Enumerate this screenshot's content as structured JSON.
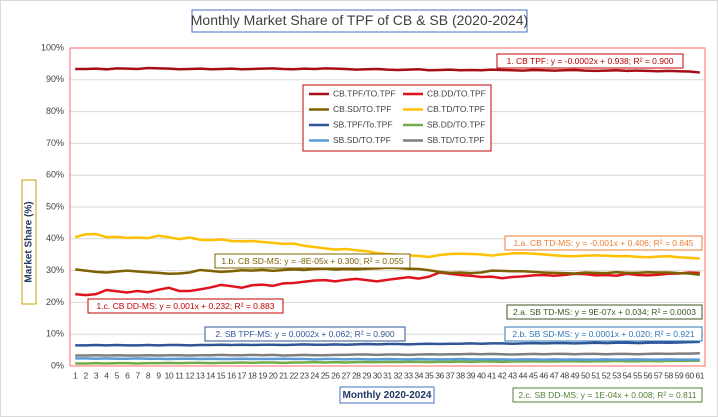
{
  "chart_data": {
    "type": "line",
    "title": "Monthly Market Share of TPF of CB & SB (2020-2024)",
    "x_label": "Monthly 2020-2024",
    "y_label": "Market Share (%)",
    "grid": true,
    "x": [
      1,
      2,
      3,
      4,
      5,
      6,
      7,
      8,
      9,
      10,
      11,
      12,
      13,
      14,
      15,
      16,
      17,
      18,
      19,
      20,
      21,
      22,
      23,
      24,
      25,
      26,
      27,
      28,
      29,
      30,
      31,
      32,
      33,
      34,
      35,
      36,
      37,
      38,
      39,
      40,
      41,
      42,
      43,
      44,
      45,
      46,
      47,
      48,
      49,
      50,
      51,
      52,
      53,
      54,
      55,
      56,
      57,
      58,
      59,
      60,
      61
    ],
    "xlim": [
      0.5,
      61.5
    ],
    "ylim": [
      0,
      100
    ],
    "yticks": [
      {
        "value": 0,
        "label": "0%"
      },
      {
        "value": 10,
        "label": "10%"
      },
      {
        "value": 20,
        "label": "20%"
      },
      {
        "value": 30,
        "label": "30%"
      },
      {
        "value": 40,
        "label": "40%"
      },
      {
        "value": 50,
        "label": "50%"
      },
      {
        "value": 60,
        "label": "60%"
      },
      {
        "value": 70,
        "label": "70%"
      },
      {
        "value": 80,
        "label": "80%"
      },
      {
        "value": 90,
        "label": "90%"
      },
      {
        "value": 100,
        "label": "100%"
      }
    ],
    "series": [
      {
        "name": "CB.TPF/TO.TPF",
        "color": "#a50f15",
        "values": [
          93.4,
          93.4,
          93.5,
          93.3,
          93.6,
          93.5,
          93.4,
          93.7,
          93.6,
          93.5,
          93.3,
          93.4,
          93.5,
          93.3,
          93.4,
          93.5,
          93.3,
          93.4,
          93.5,
          93.6,
          93.4,
          93.3,
          93.5,
          93.4,
          93.6,
          93.5,
          93.4,
          93.2,
          93.3,
          93.4,
          93.2,
          93.1,
          93.2,
          93.3,
          93.0,
          93.1,
          93.2,
          93.0,
          93.1,
          93.0,
          93.2,
          93.1,
          93.0,
          92.9,
          93.1,
          93.0,
          92.9,
          93.0,
          93.1,
          92.9,
          92.8,
          92.9,
          93.0,
          92.8,
          92.9,
          92.8,
          92.7,
          92.8,
          92.7,
          92.6,
          92.3
        ]
      },
      {
        "name": "CB.DD/TO.TPF",
        "color": "#e0141e",
        "values": [
          22.6,
          22.3,
          22.6,
          23.9,
          23.5,
          23.1,
          23.6,
          23.2,
          24.0,
          24.6,
          23.6,
          23.6,
          24.1,
          24.7,
          25.5,
          25.1,
          24.6,
          25.4,
          25.6,
          25.2,
          26.0,
          26.1,
          26.5,
          26.9,
          27.0,
          26.6,
          27.1,
          27.4,
          27.0,
          26.6,
          27.1,
          27.5,
          27.9,
          27.5,
          28.1,
          29.4,
          29.0,
          28.6,
          28.4,
          28.0,
          28.1,
          27.6,
          28.0,
          28.2,
          28.5,
          28.6,
          28.4,
          28.6,
          29.0,
          28.9,
          28.5,
          28.6,
          28.4,
          29.0,
          28.6,
          28.5,
          28.7,
          29.0,
          29.1,
          29.4,
          29.3
        ]
      },
      {
        "name": "CB.SD/TO.TPF",
        "color": "#7f6000",
        "values": [
          30.4,
          30.0,
          29.6,
          29.4,
          29.7,
          30.0,
          29.7,
          29.5,
          29.3,
          29.0,
          29.1,
          29.4,
          30.2,
          29.9,
          29.6,
          29.8,
          30.1,
          30.0,
          30.2,
          29.9,
          30.2,
          30.4,
          30.2,
          30.5,
          30.6,
          30.3,
          30.5,
          30.4,
          30.6,
          30.7,
          30.9,
          30.8,
          30.6,
          30.5,
          30.1,
          29.6,
          29.3,
          29.4,
          29.2,
          29.4,
          30.0,
          29.9,
          29.8,
          29.8,
          29.6,
          29.4,
          29.3,
          29.2,
          29.1,
          29.4,
          29.3,
          29.2,
          29.5,
          29.3,
          29.3,
          29.5,
          29.4,
          29.4,
          29.2,
          29.1,
          28.7
        ]
      },
      {
        "name": "CB.TD/TO.TPF",
        "color": "#ffc000",
        "values": [
          40.5,
          41.4,
          41.5,
          40.5,
          40.6,
          40.3,
          40.4,
          40.2,
          41.0,
          40.5,
          39.9,
          40.4,
          39.7,
          39.6,
          39.8,
          39.3,
          39.2,
          39.3,
          39.0,
          38.7,
          38.4,
          38.5,
          37.8,
          37.4,
          37.0,
          36.6,
          36.8,
          36.4,
          36.1,
          35.5,
          35.2,
          35.0,
          34.8,
          34.6,
          34.3,
          34.9,
          35.2,
          35.3,
          35.2,
          35.1,
          34.7,
          35.1,
          35.4,
          35.5,
          35.3,
          35.1,
          34.8,
          34.6,
          34.5,
          34.7,
          34.8,
          34.7,
          34.5,
          34.6,
          34.3,
          34.2,
          34.4,
          34.5,
          34.2,
          34.0,
          33.8
        ]
      },
      {
        "name": "SB.TPF/To.TPF",
        "color": "#2f5597",
        "values": [
          6.5,
          6.5,
          6.6,
          6.5,
          6.6,
          6.5,
          6.5,
          6.6,
          6.5,
          6.6,
          6.6,
          6.5,
          6.6,
          6.6,
          6.7,
          6.6,
          6.7,
          6.6,
          6.7,
          6.7,
          6.6,
          6.7,
          6.8,
          6.7,
          6.7,
          6.8,
          6.7,
          6.8,
          6.9,
          6.8,
          6.9,
          6.9,
          6.8,
          6.9,
          7.0,
          6.9,
          7.0,
          7.0,
          7.1,
          7.0,
          7.1,
          7.1,
          7.0,
          7.1,
          7.2,
          7.1,
          7.2,
          7.2,
          7.1,
          7.2,
          7.3,
          7.2,
          7.3,
          7.3,
          7.2,
          7.3,
          7.4,
          7.3,
          7.4,
          7.5,
          7.6
        ]
      },
      {
        "name": "SB.DD/TO.TPF",
        "color": "#70ad47",
        "values": [
          0.8,
          0.8,
          0.9,
          0.8,
          0.9,
          0.9,
          0.8,
          0.9,
          0.9,
          1.0,
          0.9,
          1.0,
          1.0,
          0.9,
          1.0,
          1.0,
          1.1,
          1.0,
          1.1,
          1.1,
          1.0,
          1.1,
          1.1,
          1.2,
          1.1,
          1.2,
          1.1,
          1.2,
          1.2,
          1.2,
          1.3,
          1.2,
          1.3,
          1.3,
          1.2,
          1.3,
          1.3,
          1.4,
          1.3,
          1.4,
          1.4,
          1.3,
          1.4,
          1.4,
          1.5,
          1.4,
          1.4,
          1.5,
          1.5,
          1.4,
          1.5,
          1.5,
          1.6,
          1.5,
          1.5,
          1.6,
          1.5,
          1.6,
          1.6,
          1.6,
          1.7
        ]
      },
      {
        "name": "SB.SD/TO.TPF",
        "color": "#5b9bd5",
        "values": [
          2.4,
          2.4,
          2.3,
          2.4,
          2.3,
          2.3,
          2.4,
          2.3,
          2.3,
          2.2,
          2.3,
          2.3,
          2.2,
          2.3,
          2.2,
          2.2,
          2.3,
          2.2,
          2.2,
          2.2,
          2.3,
          2.2,
          2.2,
          2.1,
          2.2,
          2.2,
          2.1,
          2.2,
          2.1,
          2.1,
          2.2,
          2.1,
          2.1,
          2.2,
          2.1,
          2.1,
          2.1,
          2.2,
          2.1,
          2.1,
          2.1,
          2.1,
          2.0,
          2.1,
          2.1,
          2.0,
          2.1,
          2.0,
          2.1,
          2.0,
          2.0,
          2.1,
          2.0,
          2.0,
          2.1,
          2.0,
          2.0,
          2.1,
          2.0,
          2.0,
          2.0
        ]
      },
      {
        "name": "SB.TD/TO.TPF",
        "color": "#7f7f7f",
        "values": [
          3.3,
          3.3,
          3.4,
          3.3,
          3.4,
          3.3,
          3.3,
          3.4,
          3.3,
          3.4,
          3.4,
          3.3,
          3.4,
          3.4,
          3.5,
          3.4,
          3.4,
          3.5,
          3.4,
          3.5,
          3.3,
          3.4,
          3.5,
          3.4,
          3.4,
          3.5,
          3.5,
          3.6,
          3.6,
          3.5,
          3.6,
          3.6,
          3.5,
          3.6,
          3.7,
          3.6,
          3.7,
          3.7,
          3.8,
          3.7,
          3.8,
          3.7,
          3.6,
          3.7,
          3.8,
          3.7,
          3.8,
          3.8,
          3.7,
          3.8,
          3.8,
          3.7,
          3.8,
          3.8,
          3.7,
          3.8,
          3.9,
          3.8,
          3.9,
          3.9,
          4.0
        ]
      }
    ],
    "annotations": [
      {
        "text": "1. CB TPF: y = -0.0002x + 0.938; R² = 0.900",
        "color": "#c00000"
      },
      {
        "text": "1.a. CB TD-MS: y = -0.001x + 0.406; R² = 0.845",
        "color": "#ed7d31"
      },
      {
        "text": "1.b. CB SD-MS: y = -8E-05x + 0.300; R² = 0.055",
        "color": "#7f6000"
      },
      {
        "text": "1.c. CB DD-MS: y = 0.001x + 0.232; R² = 0.883",
        "color": "#c00000"
      },
      {
        "text": "2.a. SB TD-MS: y = 9E-07x + 0.034; R² = 0.0003",
        "color": "#375623"
      },
      {
        "text": "2. SB TPF-MS: y = 0.0002x + 0.062; R² = 0.900",
        "color": "#2f5597"
      },
      {
        "text": "2.b. SB SD-MS: y = 0.0001x + 0.020; R² = 0.921",
        "color": "#2e75b6"
      },
      {
        "text": "2.c. SB DD-MS: y = 1E-04x + 0.008; R² = 0.811",
        "color": "#548235"
      }
    ]
  }
}
